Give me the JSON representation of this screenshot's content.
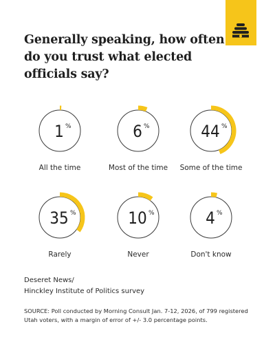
{
  "brand": {
    "logo_icon": "beehive-icon",
    "accent_color": "#f6c51a"
  },
  "title": "Generally speaking, how often do you trust what elected officials say?",
  "chart_data": {
    "type": "pie",
    "title": "Generally speaking, how often do you trust what elected officials say?",
    "unit": "%",
    "categories": [
      "All the time",
      "Most of the time",
      "Some of the time",
      "Rarely",
      "Never",
      "Don't know"
    ],
    "values": [
      1,
      6,
      44,
      35,
      10,
      4
    ],
    "colors": {
      "arc": "#f6c51a",
      "ring": "#3a3a3a"
    }
  },
  "source": {
    "name_line1": "Deseret News/",
    "name_line2": "Hinckley Institute of Politics survey",
    "note": "SOURCE: Poll conducted by Morning Consult Jan. 7-12, 2026, of 799 registered Utah voters, with a margin of error of +/- 3.0 percentage points."
  }
}
